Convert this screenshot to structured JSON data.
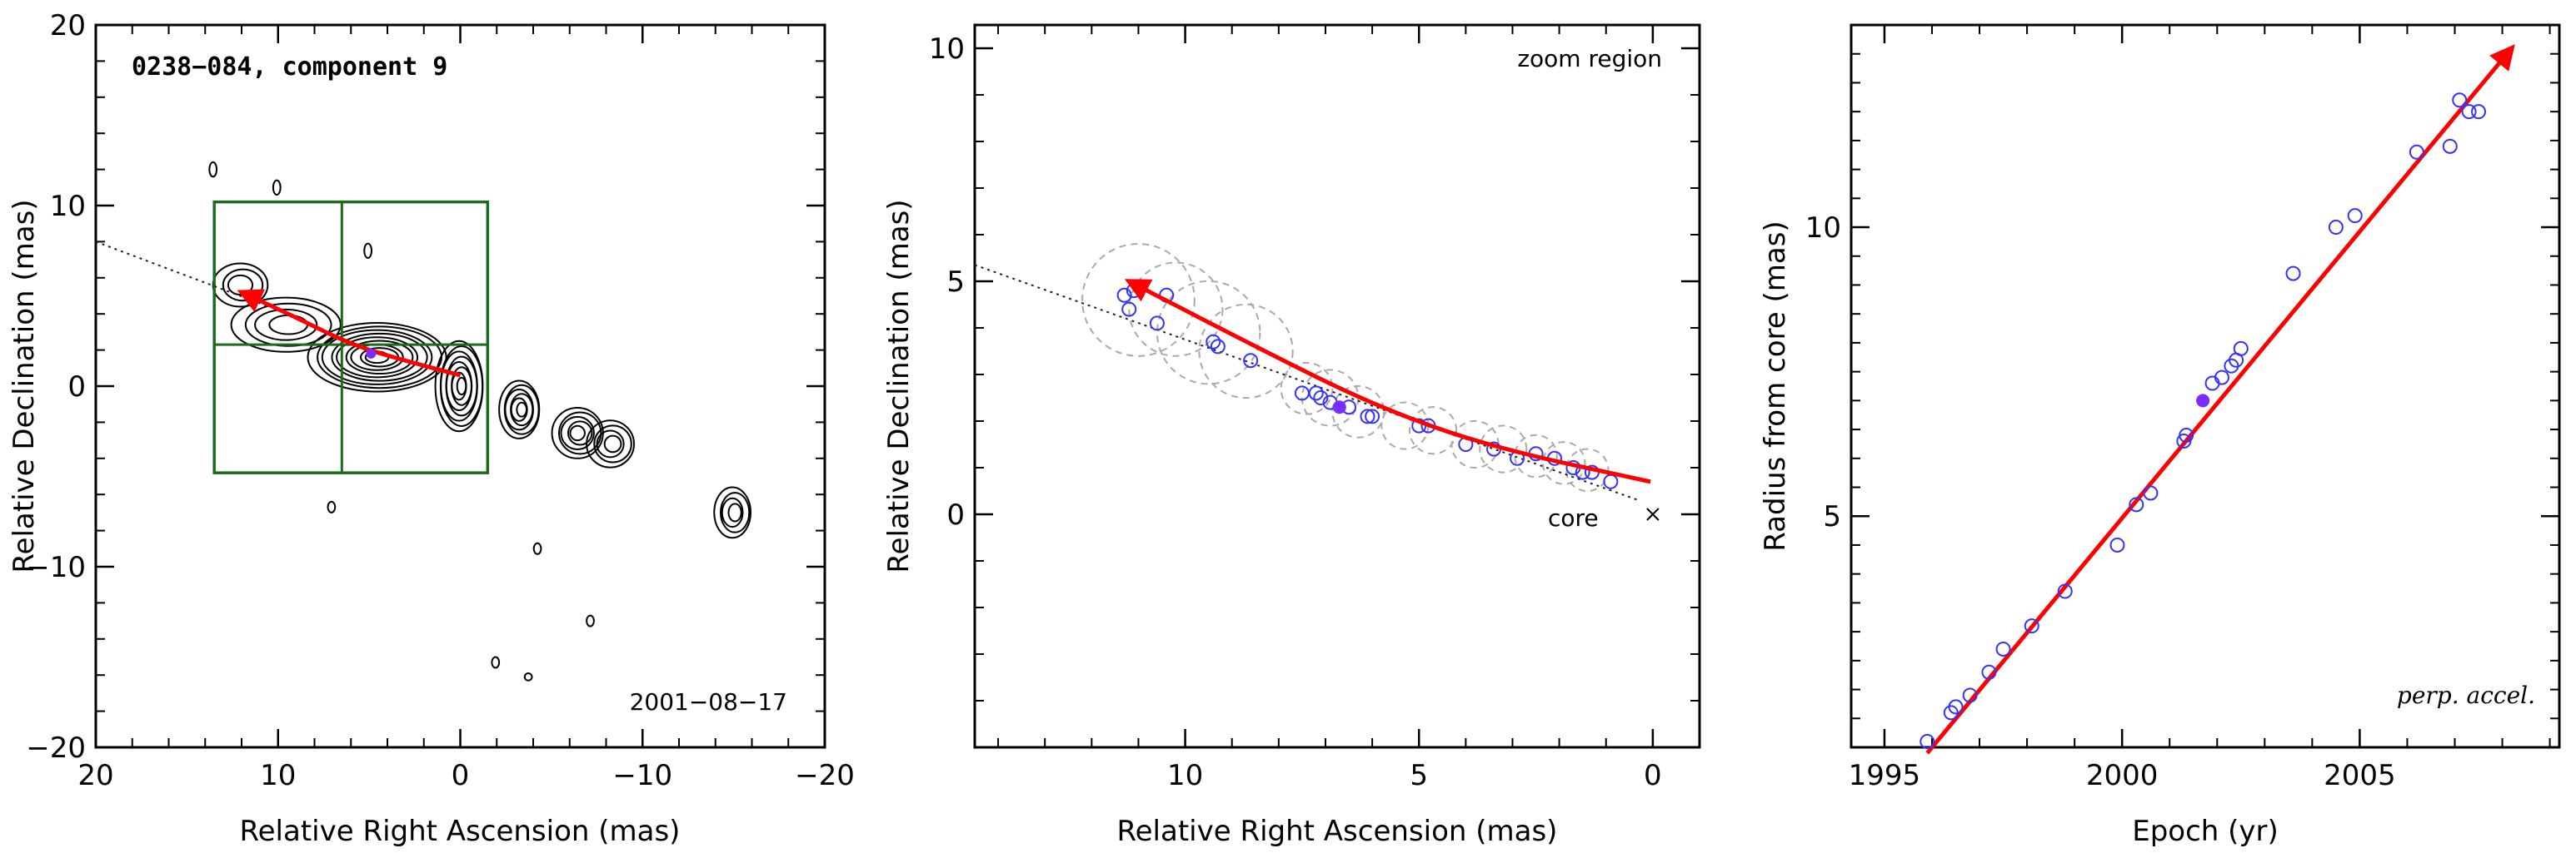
{
  "chart_data": [
    {
      "type": "contour",
      "title": "0238−084, component 9",
      "annotation": "2001−08−17",
      "xlabel": "Relative Right Ascension (mas)",
      "ylabel": "Relative Declination (mas)",
      "xlim": [
        20,
        -20
      ],
      "ylim": [
        -20,
        20
      ],
      "xticks": [
        20,
        10,
        0,
        -10,
        -20
      ],
      "xtick_labels": [
        "20",
        "10",
        "0",
        "−10",
        "−20"
      ],
      "yticks": [
        -20,
        -10,
        0,
        10,
        20
      ],
      "ytick_labels": [
        "−20",
        "−10",
        "0",
        "10",
        "20"
      ],
      "zoom_box": {
        "x": [
          13.5,
          -1.5
        ],
        "y": [
          -4.8,
          10.2
        ],
        "dividers_x": [
          6.5
        ],
        "dividers_y": [
          2.3
        ]
      },
      "track": [
        [
          12,
          5.2
        ],
        [
          9,
          3.8
        ],
        [
          6,
          2.3
        ],
        [
          3,
          1.4
        ],
        [
          0,
          0.6
        ]
      ],
      "dotted_line": [
        [
          20,
          8.0
        ],
        [
          10.5,
          4.4
        ]
      ],
      "marked_point": [
        4.9,
        1.8
      ],
      "contour_blobs": [
        {
          "center": [
            0,
            0
          ],
          "rx": 1.3,
          "ry": 2.5,
          "levels": 8
        },
        {
          "center": [
            -3.3,
            -1.3
          ],
          "rx": 1.1,
          "ry": 1.6,
          "levels": 6
        },
        {
          "center": [
            -6.5,
            -2.6
          ],
          "rx": 1.4,
          "ry": 1.4,
          "levels": 5
        },
        {
          "center": [
            -8.3,
            -3.2
          ],
          "rx": 1.3,
          "ry": 1.3,
          "levels": 4
        },
        {
          "center": [
            -15,
            -7.0
          ],
          "rx": 1.0,
          "ry": 1.4,
          "levels": 4
        },
        {
          "center": [
            4.5,
            1.6
          ],
          "rx": 3.8,
          "ry": 1.9,
          "levels": 9
        },
        {
          "center": [
            9.5,
            3.4
          ],
          "rx": 3.0,
          "ry": 1.5,
          "levels": 4
        },
        {
          "center": [
            12,
            5.6
          ],
          "rx": 1.5,
          "ry": 1.2,
          "levels": 3
        },
        {
          "center": [
            13.5,
            12
          ],
          "rx": 0.2,
          "ry": 0.4,
          "levels": 1
        },
        {
          "center": [
            10,
            11
          ],
          "rx": 0.2,
          "ry": 0.4,
          "levels": 1
        },
        {
          "center": [
            5,
            7.5
          ],
          "rx": 0.2,
          "ry": 0.4,
          "levels": 1
        },
        {
          "center": [
            7,
            -6.7
          ],
          "rx": 0.2,
          "ry": 0.3,
          "levels": 1
        },
        {
          "center": [
            -4.3,
            -9.0
          ],
          "rx": 0.2,
          "ry": 0.3,
          "levels": 1
        },
        {
          "center": [
            -7.2,
            -13.0
          ],
          "rx": 0.2,
          "ry": 0.3,
          "levels": 1
        },
        {
          "center": [
            -2,
            -15.3
          ],
          "rx": 0.2,
          "ry": 0.3,
          "levels": 1
        },
        {
          "center": [
            -3.8,
            -16.1
          ],
          "rx": 0.2,
          "ry": 0.2,
          "levels": 1
        }
      ]
    },
    {
      "type": "scatter",
      "title": "zoom region",
      "annotation": "core",
      "xlabel": "Relative Right Ascension (mas)",
      "ylabel": "Relative Declination (mas)",
      "xlim": [
        14.5,
        -1
      ],
      "ylim": [
        -5,
        10.5
      ],
      "xticks": [
        10,
        5,
        0
      ],
      "xtick_labels": [
        "10",
        "5",
        "0"
      ],
      "yticks": [
        0,
        5,
        10
      ],
      "ytick_labels": [
        "0",
        "5",
        "10"
      ],
      "points": [
        [
          11.3,
          4.7
        ],
        [
          11.1,
          4.8
        ],
        [
          11.2,
          4.4
        ],
        [
          10.4,
          4.7
        ],
        [
          10.6,
          4.1
        ],
        [
          9.4,
          3.7
        ],
        [
          9.3,
          3.6
        ],
        [
          8.6,
          3.3
        ],
        [
          7.5,
          2.6
        ],
        [
          7.2,
          2.6
        ],
        [
          7.1,
          2.5
        ],
        [
          6.9,
          2.4
        ],
        [
          6.5,
          2.3
        ],
        [
          6.1,
          2.1
        ],
        [
          6.0,
          2.1
        ],
        [
          5.0,
          1.9
        ],
        [
          4.8,
          1.9
        ],
        [
          4.0,
          1.5
        ],
        [
          3.4,
          1.4
        ],
        [
          2.9,
          1.2
        ],
        [
          2.5,
          1.3
        ],
        [
          2.1,
          1.2
        ],
        [
          1.7,
          1.0
        ],
        [
          1.5,
          0.9
        ],
        [
          1.3,
          0.9
        ],
        [
          0.9,
          0.7
        ]
      ],
      "marked_point": [
        6.7,
        2.3
      ],
      "circles": [
        [
          11.0,
          4.6,
          1.2
        ],
        [
          10.2,
          4.4,
          1.0
        ],
        [
          9.5,
          3.9,
          1.1
        ],
        [
          8.7,
          3.5,
          1.0
        ],
        [
          7.4,
          2.7,
          0.55
        ],
        [
          6.9,
          2.5,
          0.6
        ],
        [
          6.3,
          2.2,
          0.55
        ],
        [
          5.3,
          1.9,
          0.5
        ],
        [
          4.7,
          1.8,
          0.5
        ],
        [
          3.8,
          1.5,
          0.5
        ],
        [
          3.2,
          1.4,
          0.5
        ],
        [
          2.5,
          1.25,
          0.45
        ],
        [
          1.9,
          1.1,
          0.45
        ],
        [
          1.4,
          0.95,
          0.45
        ]
      ],
      "track": [
        [
          11.2,
          5.0
        ],
        [
          8.5,
          3.6
        ],
        [
          6.0,
          2.35
        ],
        [
          3.5,
          1.45
        ],
        [
          0.05,
          0.7
        ]
      ],
      "dotted_line": [
        [
          14.5,
          5.35
        ],
        [
          0.3,
          0.3
        ]
      ],
      "core_marker": [
        0,
        0
      ]
    },
    {
      "type": "scatter",
      "annotation": "perp. accel.",
      "xlabel": "Epoch (yr)",
      "ylabel": "Radius from core (mas)",
      "xlim": [
        1994.3,
        2009.2
      ],
      "ylim": [
        1.0,
        13.5
      ],
      "xticks": [
        1995,
        2000,
        2005
      ],
      "xtick_labels": [
        "1995",
        "2000",
        "2005"
      ],
      "yticks": [
        5,
        10
      ],
      "ytick_labels": [
        "5",
        "10"
      ],
      "points": [
        [
          1995.9,
          1.1
        ],
        [
          1996.4,
          1.6
        ],
        [
          1996.5,
          1.7
        ],
        [
          1996.8,
          1.9
        ],
        [
          1997.2,
          2.3
        ],
        [
          1997.5,
          2.7
        ],
        [
          1998.1,
          3.1
        ],
        [
          1998.8,
          3.7
        ],
        [
          1999.9,
          4.5
        ],
        [
          2000.3,
          5.2
        ],
        [
          2000.6,
          5.4
        ],
        [
          2001.3,
          6.3
        ],
        [
          2001.35,
          6.4
        ],
        [
          2001.9,
          7.3
        ],
        [
          2002.1,
          7.4
        ],
        [
          2002.3,
          7.6
        ],
        [
          2002.4,
          7.7
        ],
        [
          2002.5,
          7.9
        ],
        [
          2003.6,
          9.2
        ],
        [
          2004.5,
          10.0
        ],
        [
          2004.9,
          10.2
        ],
        [
          2006.2,
          11.3
        ],
        [
          2006.9,
          11.4
        ],
        [
          2007.1,
          12.2
        ],
        [
          2007.3,
          12.0
        ],
        [
          2007.5,
          12.0
        ]
      ],
      "marked_point": [
        2001.7,
        7.0
      ],
      "fit_line": [
        [
          1995.9,
          0.9
        ],
        [
          2008.2,
          13.1
        ]
      ]
    }
  ],
  "colors": {
    "axis": "#000000",
    "contour": "#000000",
    "box": "#1b6b1b",
    "track": "#ff0000",
    "points": "#3333ff",
    "marked_point": "#7b2cff",
    "circles": "#aaaaaa",
    "dotted": "#222222"
  }
}
